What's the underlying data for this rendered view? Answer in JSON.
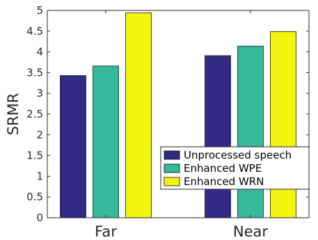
{
  "chart_data": {
    "type": "bar",
    "categories": [
      "Far",
      "Near"
    ],
    "series": [
      {
        "name": "Unprocessed speech",
        "color": "#332a86",
        "values": [
          3.43,
          3.91
        ]
      },
      {
        "name": "Enhanced WPE",
        "color": "#35b99a",
        "values": [
          3.66,
          4.14
        ]
      },
      {
        "name": "Enhanced WRN",
        "color": "#f4f40f",
        "values": [
          4.94,
          4.49
        ]
      }
    ],
    "ylabel": "SRMR",
    "xlabel": "",
    "title": "",
    "ylim": [
      0,
      5
    ],
    "yticks": [
      "0",
      "0.5",
      "1",
      "1.5",
      "2",
      "2.5",
      "3",
      "3.5",
      "4",
      "4.5",
      "5"
    ],
    "grid": false,
    "legend_position": "lower-right"
  }
}
